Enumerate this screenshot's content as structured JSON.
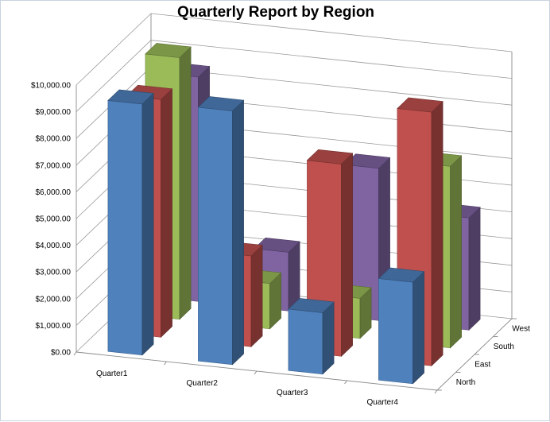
{
  "chart_data": {
    "type": "bar",
    "title": "Quarterly Report by Region",
    "xlabel": "",
    "ylabel": "",
    "categories": [
      "Quarter1",
      "Quarter2",
      "Quarter3",
      "Quarter4"
    ],
    "series": [
      {
        "name": "North",
        "values": [
          9400,
          9500,
          2300,
          3800
        ],
        "color": "#4f81bd"
      },
      {
        "name": "East",
        "values": [
          8900,
          3400,
          7200,
          9500
        ],
        "color": "#c0504d"
      },
      {
        "name": "South",
        "values": [
          9800,
          1700,
          1500,
          6800
        ],
        "color": "#9bbb59"
      },
      {
        "name": "West",
        "values": [
          8400,
          2200,
          5700,
          4200
        ],
        "color": "#8064a2"
      }
    ],
    "ylim": [
      0,
      10000
    ],
    "yticks": [
      "$0.00",
      "$1,000.00",
      "$2,000.00",
      "$3,000.00",
      "$4,000.00",
      "$5,000.00",
      "$6,000.00",
      "$7,000.00",
      "$8,000.00",
      "$9,000.00",
      "$10,000.00"
    ],
    "depth_labels": [
      "North",
      "East",
      "South",
      "West"
    ],
    "grid": true,
    "legend": "none"
  }
}
